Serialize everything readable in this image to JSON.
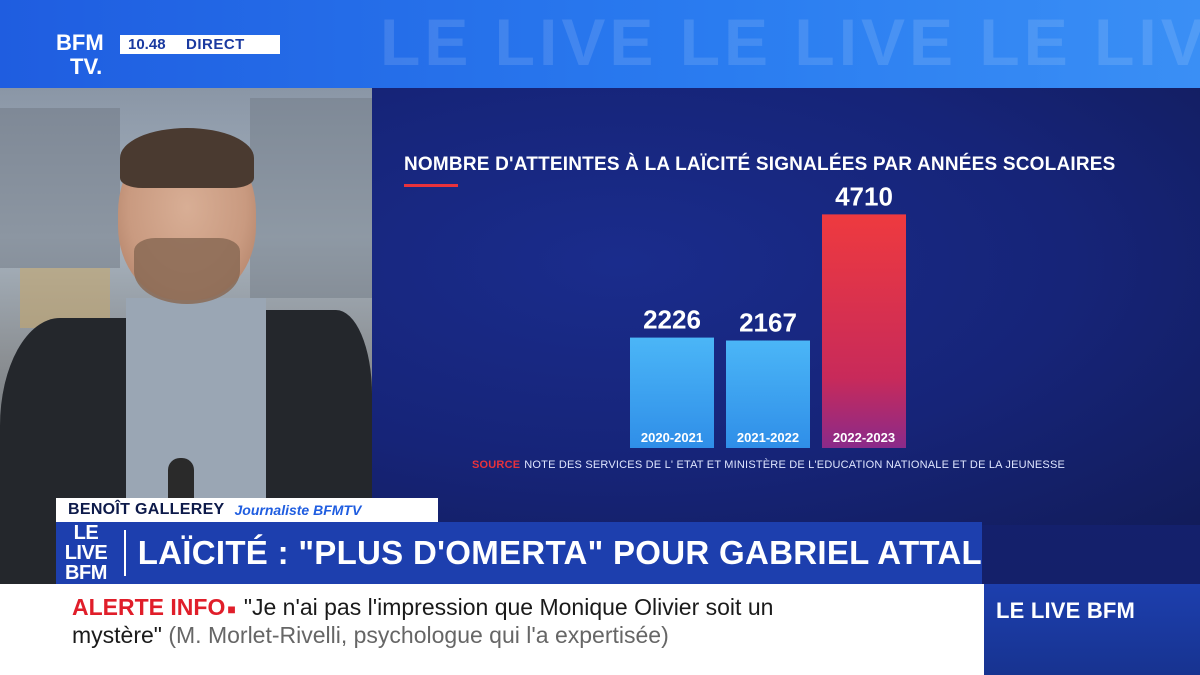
{
  "channel": {
    "logo_line1": "BFM",
    "logo_line2": "TV.",
    "time": "10.48",
    "status": "DIRECT",
    "background_text": "LE LIVE LE LIVE LE LIVE LE"
  },
  "chart": {
    "title": "NOMBRE D'ATTEINTES À LA LAÏCITÉ SIGNALÉES PAR ANNÉES SCOLAIRES",
    "source_label": "SOURCE",
    "source_text": "NOTE DES SERVICES DE L' ETAT ET MINISTÈRE DE L'EDUCATION NATIONALE ET DE LA JEUNESSE"
  },
  "chart_data": {
    "type": "bar",
    "title": "NOMBRE D'ATTEINTES À LA LAÏCITÉ SIGNALÉES PAR ANNÉES SCOLAIRES",
    "categories": [
      "2020-2021",
      "2021-2022",
      "2022-2023"
    ],
    "values": [
      2226,
      2167,
      4710
    ],
    "xlabel": "",
    "ylabel": "",
    "ylim": [
      0,
      5000
    ],
    "grid": false,
    "legend": "none",
    "colors": [
      "#3aa8f2",
      "#3aa8f2",
      "#e8323c"
    ]
  },
  "guest": {
    "name": "BENOÎT GALLEREY",
    "role": "Journaliste BFMTV"
  },
  "headline": {
    "logo_line1": "LE LIVE",
    "logo_line2": "BFM",
    "text": "LAÏCITÉ : \"PLUS D'OMERTA\" POUR GABRIEL ATTAL"
  },
  "ticker": {
    "alert_label": "ALERTE INFO",
    "quote_part1": "\"Je n'ai pas l'impression que Monique Olivier soit un",
    "quote_part2": "mystère\"",
    "attribution": "(M. Morlet-Rivelli, psychologue qui l'a expertisée)"
  },
  "corner_brand": "LE LIVE BFM",
  "colors": {
    "brand_blue": "#1f5de0",
    "alert_red": "#e01e2a",
    "bar_blue": "#3aa8f2",
    "bar_red": "#e8323c"
  }
}
